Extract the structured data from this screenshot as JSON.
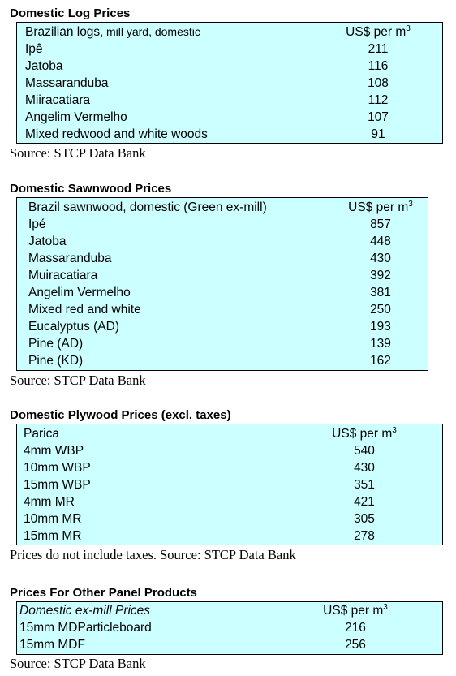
{
  "log": {
    "title": "Domestic Log Prices",
    "header": {
      "label_main": "Brazilian logs",
      "label_sub": ", mill yard, domestic",
      "unit": "US$ per m",
      "unit_sup": "3"
    },
    "rows": [
      {
        "name": "Ipê",
        "value": "211"
      },
      {
        "name": "Jatoba",
        "value": "116"
      },
      {
        "name": "Massaranduba",
        "value": "108"
      },
      {
        "name": "Miiracatiara",
        "value": "112"
      },
      {
        "name": "Angelim Vermelho",
        "value": "107"
      },
      {
        "name": "Mixed redwood and white woods",
        "value": "91"
      }
    ],
    "source": "Source: STCP Data Bank"
  },
  "sawnwood": {
    "title": "Domestic Sawnwood Prices",
    "header": {
      "label": "Brazil sawnwood, domestic (Green ex-mill)",
      "unit": "US$ per m",
      "unit_sup": "3"
    },
    "rows": [
      {
        "name": "Ipé",
        "value": "857"
      },
      {
        "name": "Jatoba",
        "value": "448"
      },
      {
        "name": "Massaranduba",
        "value": "430"
      },
      {
        "name": "Muiracatiara",
        "value": "392"
      },
      {
        "name": "Angelim Vermelho",
        "value": "381"
      },
      {
        "name": "Mixed red and white",
        "value": "250"
      },
      {
        "name": "Eucalyptus (AD)",
        "value": "193"
      },
      {
        "name": "Pine (AD)",
        "value": "139"
      },
      {
        "name": "Pine (KD)",
        "value": "162"
      }
    ],
    "source": "Source: STCP Data Bank"
  },
  "plywood": {
    "title": "Domestic Plywood Prices (excl. taxes)",
    "header": {
      "label": "Parica",
      "unit": "US$ per m",
      "unit_sup": "3"
    },
    "rows": [
      {
        "name": "4mm WBP",
        "value": "540"
      },
      {
        "name": "10mm WBP",
        "value": "430"
      },
      {
        "name": "15mm WBP",
        "value": "351"
      },
      {
        "name": "4mm MR",
        "value": "421"
      },
      {
        "name": "10mm MR",
        "value": "305"
      },
      {
        "name": "15mm MR",
        "value": "278"
      }
    ],
    "source": "Prices do not include taxes. Source: STCP Data Bank"
  },
  "panel": {
    "title": "Prices For Other Panel Products",
    "header": {
      "label": "Domestic ex-mill Prices",
      "unit": "US$ per m",
      "unit_sup": "3"
    },
    "rows": [
      {
        "name": "15mm MDParticleboard",
        "value": "216"
      },
      {
        "name": "15mm MDF",
        "value": "256"
      }
    ],
    "source": "Source: STCP Data Bank"
  }
}
